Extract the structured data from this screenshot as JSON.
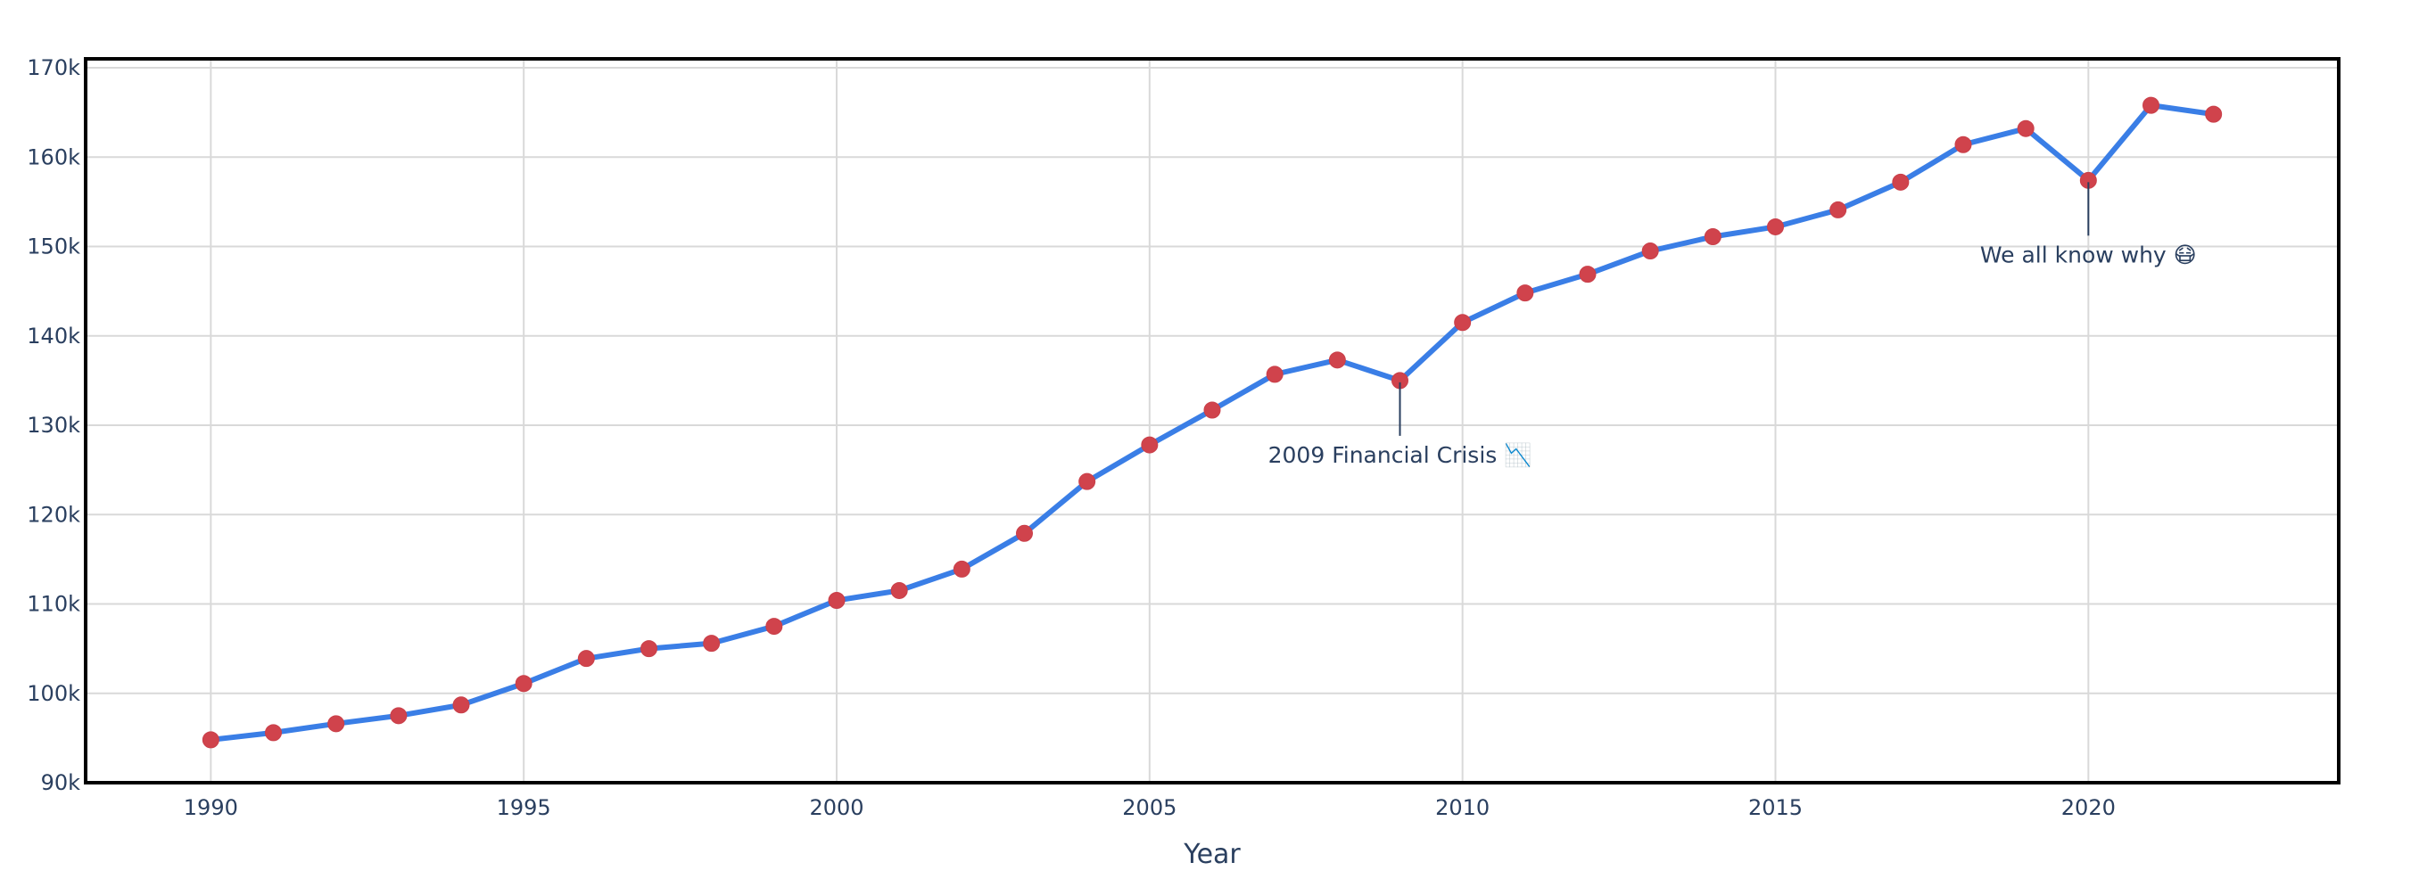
{
  "chart_data": {
    "type": "line",
    "title": "",
    "xlabel": "Year",
    "ylabel": "",
    "xlim": [
      1988,
      2024
    ],
    "ylim": [
      90000,
      171000
    ],
    "x_ticks": [
      1990,
      1995,
      2000,
      2005,
      2010,
      2015,
      2020
    ],
    "x_tick_labels": [
      "1990",
      "1995",
      "2000",
      "2005",
      "2010",
      "2015",
      "2020"
    ],
    "y_ticks": [
      90000,
      100000,
      110000,
      120000,
      130000,
      140000,
      150000,
      160000,
      170000
    ],
    "y_tick_labels": [
      "90k",
      "100k",
      "110k",
      "120k",
      "130k",
      "140k",
      "150k",
      "160k",
      "170k"
    ],
    "grid": true,
    "line_color": "#3a7ee6",
    "marker_color": "#d0434c",
    "series": [
      {
        "x": [
          1990,
          1991,
          1992,
          1993,
          1994,
          1995,
          1996,
          1997,
          1998,
          1999,
          2000,
          2001,
          2002,
          2003,
          2004,
          2005,
          2006,
          2007,
          2008,
          2009,
          2010,
          2011,
          2012,
          2013,
          2014,
          2015,
          2016,
          2017,
          2018,
          2019,
          2020,
          2021,
          2022
        ],
        "values": [
          94800,
          95600,
          96600,
          97500,
          98700,
          101100,
          103900,
          105000,
          105600,
          107500,
          110400,
          111500,
          113900,
          117900,
          123700,
          127800,
          131700,
          135700,
          137300,
          135000,
          141500,
          144800,
          146900,
          149500,
          151100,
          152200,
          154100,
          157200,
          161400,
          163200,
          157400,
          165800,
          164800
        ]
      }
    ],
    "annotations": [
      {
        "x": 2009,
        "y": 135000,
        "text": "2009 Financial Crisis 📉"
      },
      {
        "x": 2020,
        "y": 157400,
        "text": "We all know why 😷"
      }
    ]
  }
}
